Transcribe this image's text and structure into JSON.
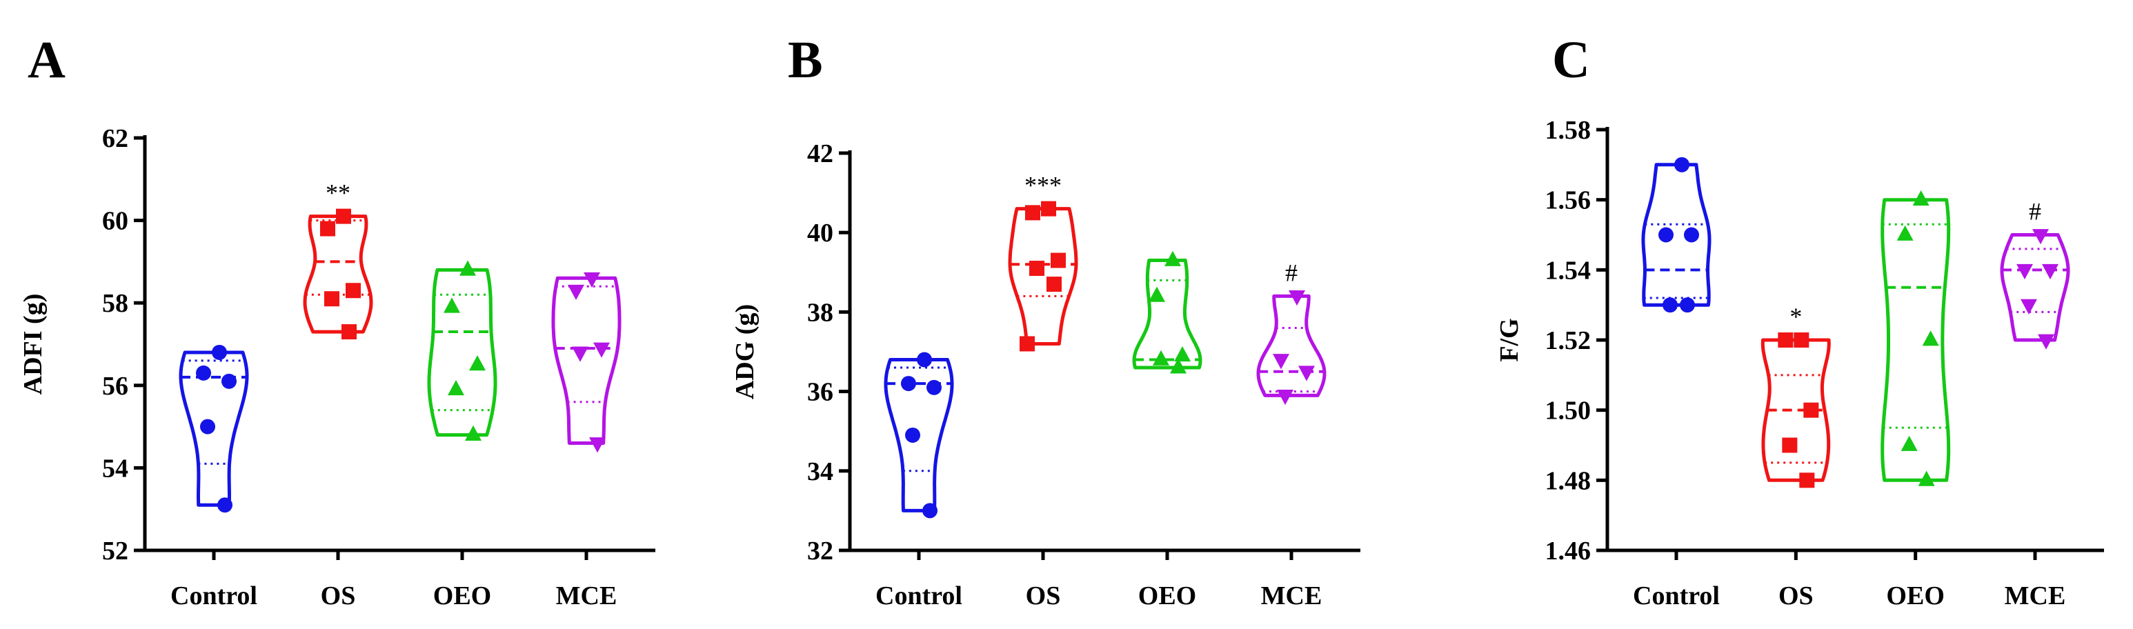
{
  "colors": {
    "Control": "#1414e6",
    "OS": "#f01414",
    "OEO": "#14c814",
    "MCE": "#b414e6",
    "axis": "#000000"
  },
  "marker_shapes": {
    "Control": "circle",
    "OS": "square",
    "OEO": "triangle-up",
    "MCE": "triangle-down"
  },
  "chart_data": [
    {
      "type": "violin",
      "panel": "A",
      "xlabel": "",
      "ylabel": "ADFI (g)",
      "ylim": [
        52,
        62
      ],
      "yticks": [
        52,
        54,
        56,
        58,
        60,
        62
      ],
      "ytick_labels": [
        "52",
        "54",
        "56",
        "58",
        "60",
        "62"
      ],
      "categories": [
        "Control",
        "OS",
        "OEO",
        "MCE"
      ],
      "series": [
        {
          "name": "Control",
          "values": [
            56.8,
            56.3,
            56.1,
            55.0,
            53.1
          ],
          "median": 56.2,
          "q1": 54.1,
          "q3": 56.6,
          "significance": ""
        },
        {
          "name": "OS",
          "values": [
            60.1,
            59.8,
            58.3,
            58.1,
            57.3
          ],
          "median": 59.0,
          "q1": 58.2,
          "q3": 60.0,
          "significance": "**"
        },
        {
          "name": "OEO",
          "values": [
            58.8,
            57.9,
            56.5,
            55.9,
            54.8
          ],
          "median": 57.3,
          "q1": 55.4,
          "q3": 58.2,
          "significance": ""
        },
        {
          "name": "MCE",
          "values": [
            58.6,
            58.3,
            56.9,
            56.8,
            54.6
          ],
          "median": 56.9,
          "q1": 55.6,
          "q3": 58.4,
          "significance": ""
        }
      ]
    },
    {
      "type": "violin",
      "panel": "B",
      "xlabel": "",
      "ylabel": "ADG (g)",
      "ylim": [
        32,
        42
      ],
      "yticks": [
        32,
        34,
        36,
        38,
        40,
        42
      ],
      "ytick_labels": [
        "32",
        "34",
        "36",
        "38",
        "40",
        "42"
      ],
      "categories": [
        "Control",
        "OS",
        "OEO",
        "MCE"
      ],
      "series": [
        {
          "name": "Control",
          "values": [
            36.8,
            36.2,
            36.1,
            34.9,
            33.0
          ],
          "median": 36.2,
          "q1": 34.0,
          "q3": 36.6,
          "significance": ""
        },
        {
          "name": "OS",
          "values": [
            40.6,
            40.5,
            39.3,
            39.1,
            38.7,
            37.2
          ],
          "median": 39.2,
          "q1": 38.4,
          "q3": 40.6,
          "significance": "***"
        },
        {
          "name": "OEO",
          "values": [
            39.3,
            38.4,
            36.9,
            36.8,
            36.6
          ],
          "median": 36.8,
          "q1": 36.6,
          "q3": 38.8,
          "significance": ""
        },
        {
          "name": "MCE",
          "values": [
            38.4,
            36.8,
            36.5,
            35.9
          ],
          "median": 36.5,
          "q1": 36.0,
          "q3": 37.6,
          "significance": "#"
        }
      ]
    },
    {
      "type": "violin",
      "panel": "C",
      "xlabel": "",
      "ylabel": "F/G",
      "ylim": [
        1.46,
        1.58
      ],
      "yticks": [
        1.46,
        1.48,
        1.5,
        1.52,
        1.54,
        1.56,
        1.58
      ],
      "ytick_labels": [
        "1.46",
        "1.48",
        "1.50",
        "1.52",
        "1.54",
        "1.56",
        "1.58"
      ],
      "categories": [
        "Control",
        "OS",
        "OEO",
        "MCE"
      ],
      "series": [
        {
          "name": "Control",
          "values": [
            1.57,
            1.55,
            1.55,
            1.53,
            1.53
          ],
          "median": 1.54,
          "q1": 1.532,
          "q3": 1.553,
          "significance": ""
        },
        {
          "name": "OS",
          "values": [
            1.52,
            1.52,
            1.5,
            1.49,
            1.48
          ],
          "median": 1.5,
          "q1": 1.485,
          "q3": 1.51,
          "significance": "*"
        },
        {
          "name": "OEO",
          "values": [
            1.56,
            1.55,
            1.52,
            1.49,
            1.48
          ],
          "median": 1.535,
          "q1": 1.495,
          "q3": 1.553,
          "significance": ""
        },
        {
          "name": "MCE",
          "values": [
            1.55,
            1.54,
            1.54,
            1.53,
            1.52
          ],
          "median": 1.54,
          "q1": 1.528,
          "q3": 1.546,
          "significance": "#"
        }
      ]
    }
  ]
}
